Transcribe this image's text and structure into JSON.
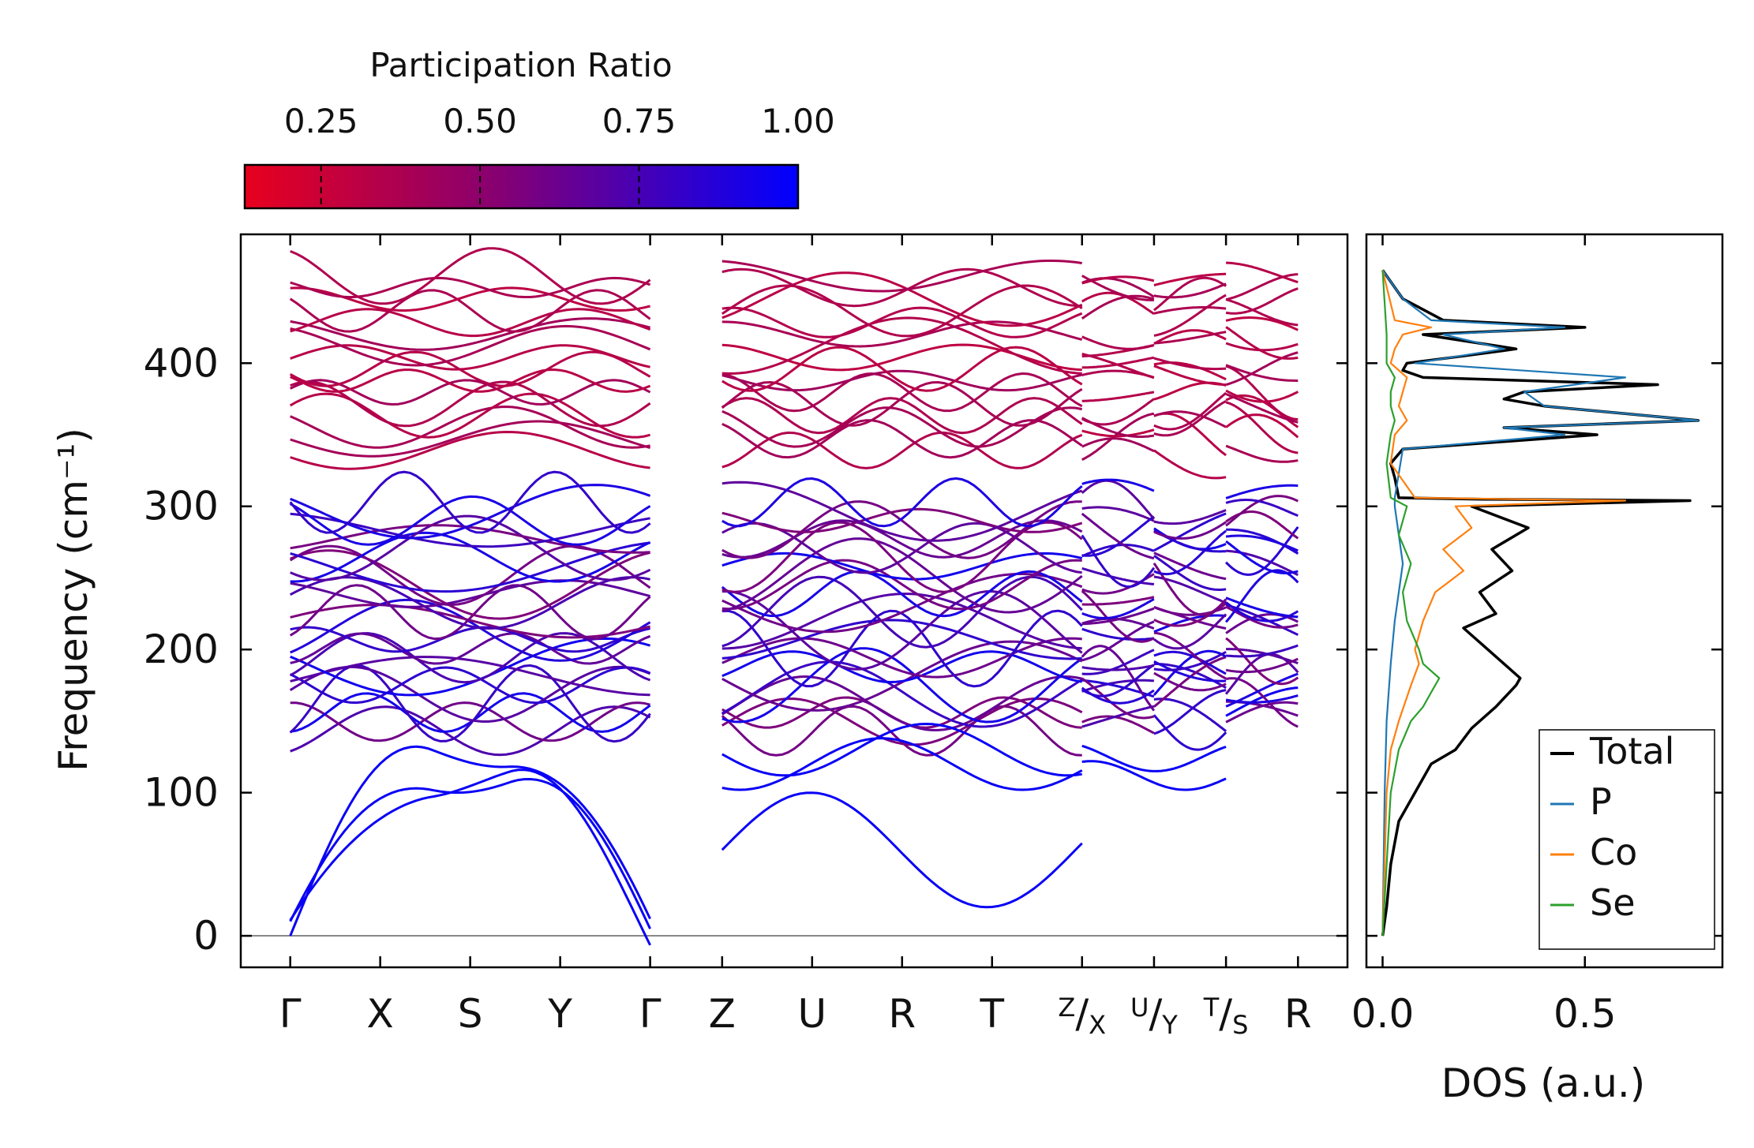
{
  "chart_data": [
    {
      "type": "line",
      "name": "phonon-dispersion",
      "ylabel": "Frequency (cm⁻¹)",
      "ylim": [
        -22,
        490
      ],
      "yticks": [
        0,
        100,
        200,
        300,
        400
      ],
      "kpoints": [
        {
          "label": "Γ",
          "pos": 0
        },
        {
          "label": "X",
          "pos": 1
        },
        {
          "label": "S",
          "pos": 2
        },
        {
          "label": "Y",
          "pos": 3
        },
        {
          "label": "Γ",
          "pos": 4
        },
        {
          "label": "Z",
          "pos": 4.8
        },
        {
          "label": "U",
          "pos": 5.8
        },
        {
          "label": "R",
          "pos": 6.8
        },
        {
          "label": "T",
          "pos": 7.8
        },
        {
          "label": "Z",
          "sub": "X",
          "pos": 8.8
        },
        {
          "label": "U",
          "sub": "Y",
          "pos": 9.6
        },
        {
          "label": "T",
          "sub": "S",
          "pos": 10.4
        },
        {
          "label": "R",
          "pos": 11.2
        }
      ],
      "xlim": [
        -0.55,
        11.75
      ],
      "segments": [
        [
          0,
          4
        ],
        [
          4.8,
          8.8
        ],
        [
          8.8,
          9.6
        ],
        [
          9.6,
          10.4
        ],
        [
          10.4,
          11.2
        ]
      ],
      "branch_groups": {
        "optical_high": {
          "range": [
            335,
            465
          ],
          "participation": 0.3
        },
        "optical_mid": {
          "range": [
            140,
            306
          ],
          "participation": 0.55
        },
        "acoustic_low": {
          "range": [
            0,
            160
          ],
          "participation": 0.97
        }
      }
    },
    {
      "type": "line",
      "name": "density-of-states",
      "xlabel": "DOS (a.u.)",
      "xlim": [
        -0.04,
        0.84
      ],
      "xticks": [
        0.0,
        0.5
      ],
      "xtick_labels": [
        "0.0",
        "0.5"
      ],
      "ylim": [
        -22,
        490
      ],
      "legend_position": "bottom-right",
      "series": [
        {
          "name": "Total",
          "color": "#000000",
          "y": [
            0,
            20,
            50,
            80,
            100,
            120,
            130,
            145,
            160,
            175,
            180,
            190,
            200,
            215,
            225,
            240,
            255,
            270,
            285,
            300,
            304,
            305,
            306,
            320,
            330,
            340,
            350,
            355,
            360,
            370,
            375,
            380,
            385,
            390,
            395,
            400,
            405,
            410,
            420,
            425,
            430,
            445,
            465
          ],
          "values": [
            0.0,
            0.01,
            0.02,
            0.04,
            0.08,
            0.12,
            0.18,
            0.22,
            0.28,
            0.33,
            0.34,
            0.3,
            0.26,
            0.2,
            0.28,
            0.24,
            0.32,
            0.27,
            0.36,
            0.22,
            0.76,
            0.25,
            0.04,
            0.03,
            0.02,
            0.05,
            0.53,
            0.3,
            0.78,
            0.4,
            0.3,
            0.35,
            0.68,
            0.1,
            0.05,
            0.06,
            0.2,
            0.33,
            0.1,
            0.5,
            0.15,
            0.05,
            0.0
          ]
        },
        {
          "name": "P",
          "color": "#1f77b4",
          "y": [
            0,
            100,
            150,
            190,
            220,
            240,
            260,
            280,
            300,
            306,
            340,
            350,
            355,
            360,
            370,
            380,
            390,
            400,
            410,
            420,
            425,
            430,
            445,
            465
          ],
          "values": [
            0.0,
            0.005,
            0.01,
            0.02,
            0.03,
            0.04,
            0.05,
            0.04,
            0.03,
            0.03,
            0.05,
            0.45,
            0.3,
            0.78,
            0.4,
            0.35,
            0.6,
            0.08,
            0.3,
            0.15,
            0.45,
            0.12,
            0.05,
            0.0
          ]
        },
        {
          "name": "Co",
          "color": "#ff7f0e",
          "y": [
            0,
            100,
            130,
            150,
            175,
            190,
            200,
            220,
            240,
            255,
            270,
            285,
            300,
            304,
            306,
            330,
            350,
            360,
            370,
            380,
            390,
            400,
            410,
            420,
            425,
            430,
            465
          ],
          "values": [
            0.0,
            0.01,
            0.02,
            0.04,
            0.07,
            0.09,
            0.08,
            0.1,
            0.13,
            0.2,
            0.15,
            0.22,
            0.18,
            0.6,
            0.08,
            0.02,
            0.03,
            0.06,
            0.04,
            0.05,
            0.06,
            0.02,
            0.03,
            0.05,
            0.12,
            0.03,
            0.0
          ]
        },
        {
          "name": "Se",
          "color": "#2ca02c",
          "y": [
            0,
            100,
            130,
            150,
            160,
            170,
            180,
            190,
            200,
            220,
            240,
            260,
            280,
            300,
            306,
            330,
            350,
            360,
            370,
            380,
            390,
            400,
            410,
            420,
            465
          ],
          "values": [
            0.0,
            0.02,
            0.04,
            0.07,
            0.1,
            0.12,
            0.14,
            0.1,
            0.09,
            0.06,
            0.05,
            0.07,
            0.04,
            0.06,
            0.02,
            0.01,
            0.02,
            0.03,
            0.02,
            0.02,
            0.03,
            0.01,
            0.01,
            0.01,
            0.0
          ]
        }
      ]
    }
  ],
  "colorbar": {
    "title": "Participation Ratio",
    "ticks": [
      0.25,
      0.5,
      0.75,
      1.0
    ],
    "tick_labels": [
      "0.25",
      "0.50",
      "0.75",
      "1.00"
    ],
    "range": [
      0.13,
      1.0
    ],
    "color_low": "#e8001e",
    "color_mid": "#880070",
    "color_high": "#0000ff"
  },
  "zero_line_color": "#888888"
}
